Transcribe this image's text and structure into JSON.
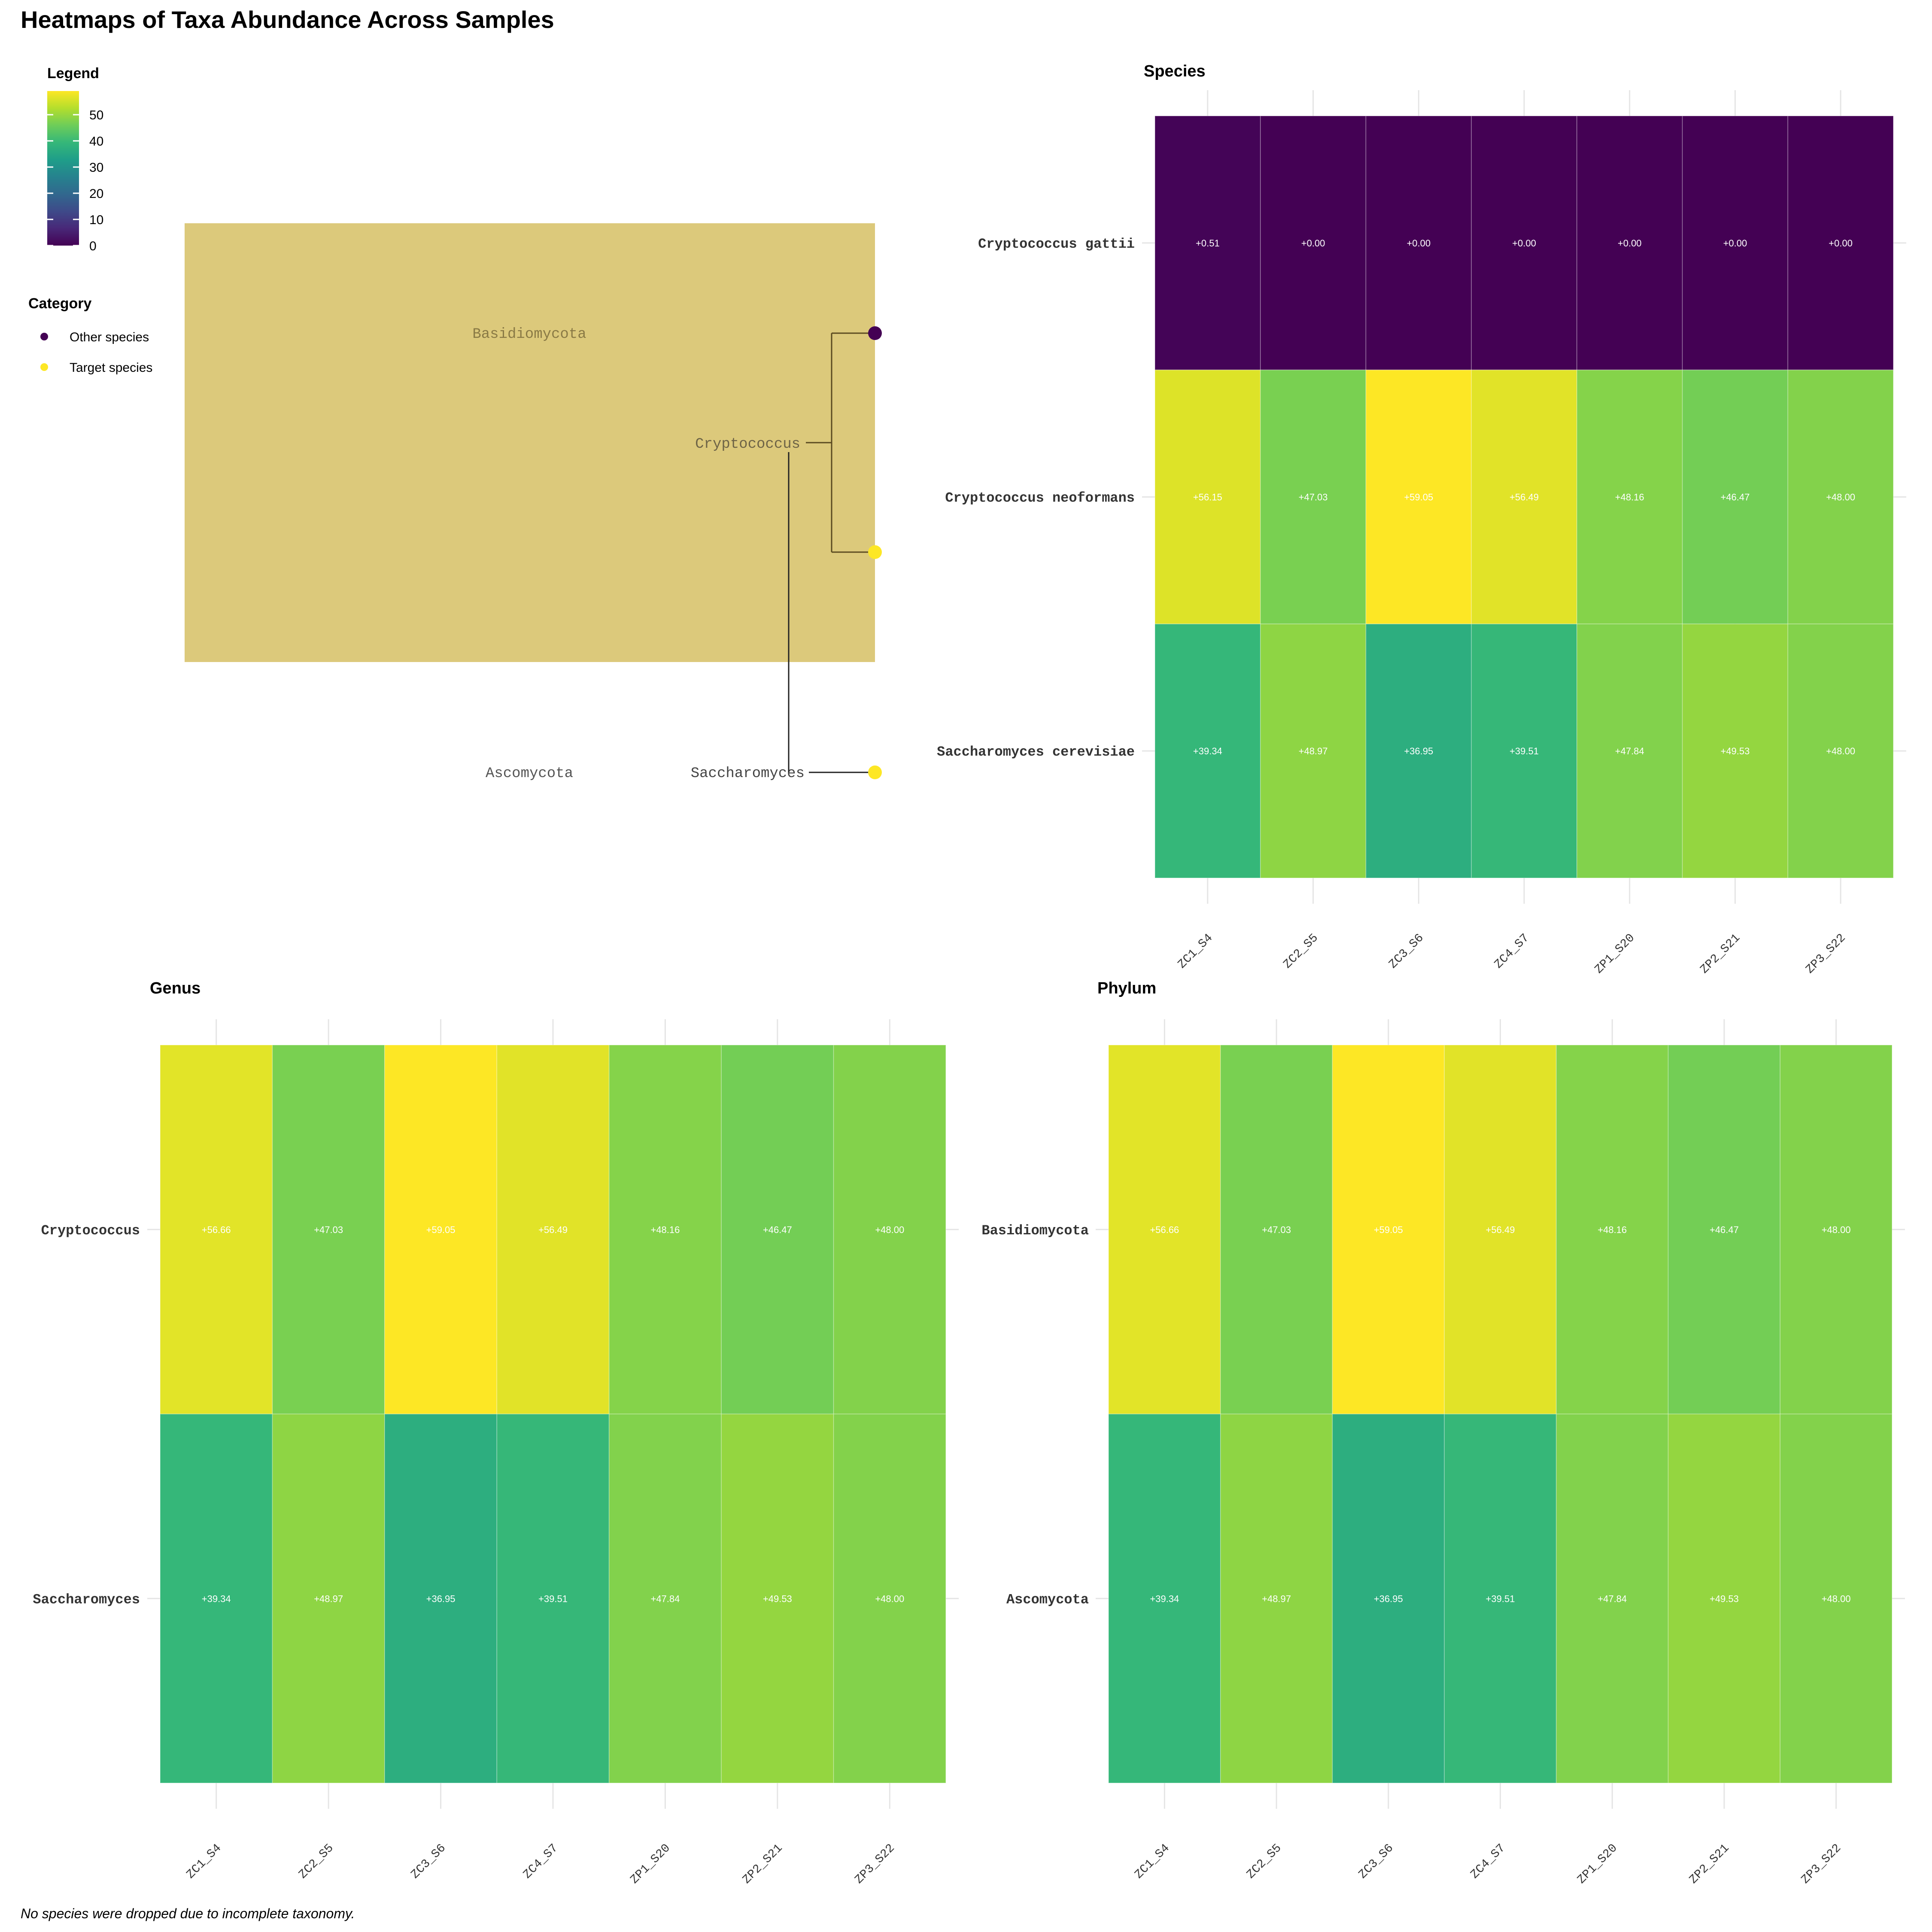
{
  "title": "Heatmaps of Taxa Abundance Across Samples",
  "footnote": "No species were dropped due to incomplete taxonomy.",
  "legend": {
    "title": "Legend",
    "ticks": [
      0,
      10,
      20,
      30,
      40,
      50
    ],
    "range": [
      0,
      59.05
    ],
    "colormap": "viridis"
  },
  "category_legend": {
    "title": "Category",
    "items": [
      {
        "label": "Other species",
        "color": "#440154"
      },
      {
        "label": "Target species",
        "color": "#FDE725"
      }
    ]
  },
  "tree": {
    "highlight_label": "Basidiomycota",
    "highlight_color": "#DCC97B",
    "other_phylum": "Ascomycota",
    "genus_labels": [
      "Cryptococcus",
      "Saccharomyces"
    ],
    "tips": [
      {
        "category": "Other species"
      },
      {
        "category": "Target species"
      },
      {
        "category": "Target species"
      }
    ]
  },
  "chart_data": [
    {
      "type": "heatmap",
      "title": "Species",
      "x": [
        "ZC1_S4",
        "ZC2_S5",
        "ZC3_S6",
        "ZC4_S7",
        "ZP1_S20",
        "ZP2_S21",
        "ZP3_S22"
      ],
      "y": [
        "Cryptococcus gattii",
        "Cryptococcus neoformans",
        "Saccharomyces cerevisiae"
      ],
      "values": [
        [
          0.51,
          0.0,
          0.0,
          0.0,
          0.0,
          0.0,
          0.0
        ],
        [
          56.15,
          47.03,
          59.05,
          56.49,
          48.16,
          46.47,
          48.0
        ],
        [
          39.34,
          48.97,
          36.95,
          39.51,
          47.84,
          49.53,
          48.0
        ]
      ],
      "labels": [
        [
          "+0.51",
          "+0.00",
          "+0.00",
          "+0.00",
          "+0.00",
          "+0.00",
          "+0.00"
        ],
        [
          "+56.15",
          "+47.03",
          "+59.05",
          "+56.49",
          "+48.16",
          "+46.47",
          "+48.00"
        ],
        [
          "+39.34",
          "+48.97",
          "+36.95",
          "+39.51",
          "+47.84",
          "+49.53",
          "+48.00"
        ]
      ]
    },
    {
      "type": "heatmap",
      "title": "Genus",
      "x": [
        "ZC1_S4",
        "ZC2_S5",
        "ZC3_S6",
        "ZC4_S7",
        "ZP1_S20",
        "ZP2_S21",
        "ZP3_S22"
      ],
      "y": [
        "Cryptococcus",
        "Saccharomyces"
      ],
      "values": [
        [
          56.66,
          47.03,
          59.05,
          56.49,
          48.16,
          46.47,
          48.0
        ],
        [
          39.34,
          48.97,
          36.95,
          39.51,
          47.84,
          49.53,
          48.0
        ]
      ],
      "labels": [
        [
          "+56.66",
          "+47.03",
          "+59.05",
          "+56.49",
          "+48.16",
          "+46.47",
          "+48.00"
        ],
        [
          "+39.34",
          "+48.97",
          "+36.95",
          "+39.51",
          "+47.84",
          "+49.53",
          "+48.00"
        ]
      ]
    },
    {
      "type": "heatmap",
      "title": "Phylum",
      "x": [
        "ZC1_S4",
        "ZC2_S5",
        "ZC3_S6",
        "ZC4_S7",
        "ZP1_S20",
        "ZP2_S21",
        "ZP3_S22"
      ],
      "y": [
        "Basidiomycota",
        "Ascomycota"
      ],
      "values": [
        [
          56.66,
          47.03,
          59.05,
          56.49,
          48.16,
          46.47,
          48.0
        ],
        [
          39.34,
          48.97,
          36.95,
          39.51,
          47.84,
          49.53,
          48.0
        ]
      ],
      "labels": [
        [
          "+56.66",
          "+47.03",
          "+59.05",
          "+56.49",
          "+48.16",
          "+46.47",
          "+48.00"
        ],
        [
          "+39.34",
          "+48.97",
          "+36.95",
          "+39.51",
          "+47.84",
          "+49.53",
          "+48.00"
        ]
      ]
    }
  ]
}
